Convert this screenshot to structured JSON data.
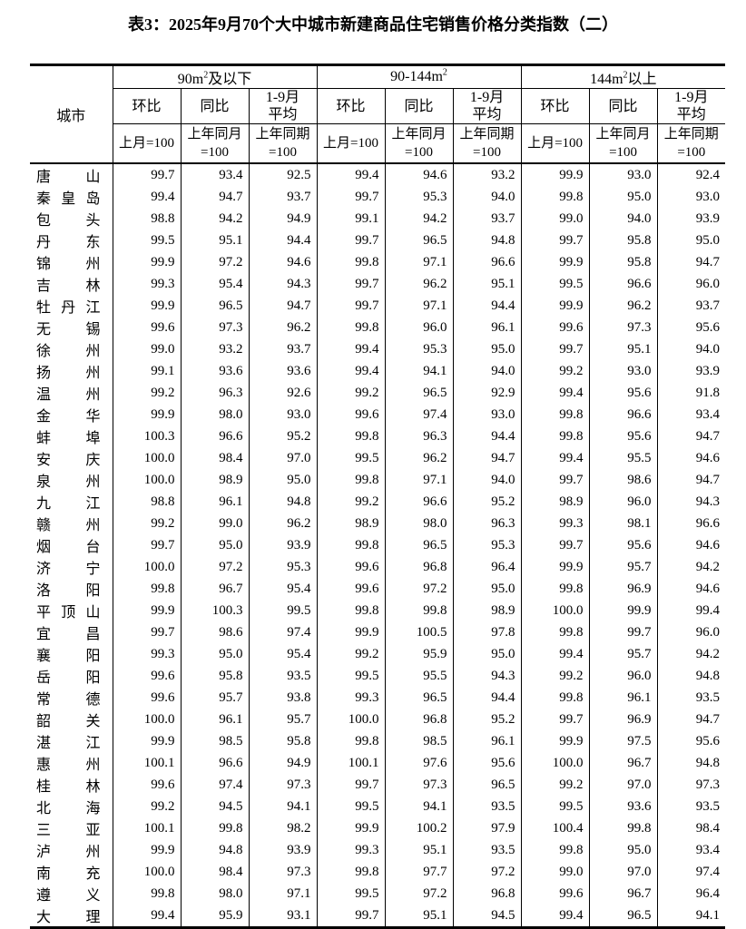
{
  "title": "表3：2025年9月70个大中城市新建商品住宅销售价格分类指数（二）",
  "table": {
    "city_header": "城市",
    "groups": [
      {
        "base": "90m",
        "sup": "2",
        "suffix": "及以下"
      },
      {
        "base": "90-144m",
        "sup": "2",
        "suffix": ""
      },
      {
        "base": "144m",
        "sup": "2",
        "suffix": "以上"
      }
    ],
    "sub_headers": [
      {
        "label_lines": [
          "环比"
        ],
        "basis_lines": [
          "上月=100"
        ]
      },
      {
        "label_lines": [
          "同比"
        ],
        "basis_lines": [
          "上年同月",
          "=100"
        ]
      },
      {
        "label_lines": [
          "1-9月",
          "平均"
        ],
        "basis_lines": [
          "上年同期",
          "=100"
        ]
      }
    ],
    "rows": [
      {
        "city": "唐山",
        "values": [
          "99.7",
          "93.4",
          "92.5",
          "99.4",
          "94.6",
          "93.2",
          "99.9",
          "93.0",
          "92.4"
        ]
      },
      {
        "city": "秦皇岛",
        "values": [
          "99.4",
          "94.7",
          "93.7",
          "99.7",
          "95.3",
          "94.0",
          "99.8",
          "95.0",
          "93.0"
        ]
      },
      {
        "city": "包头",
        "values": [
          "98.8",
          "94.2",
          "94.9",
          "99.1",
          "94.2",
          "93.7",
          "99.0",
          "94.0",
          "93.9"
        ]
      },
      {
        "city": "丹东",
        "values": [
          "99.5",
          "95.1",
          "94.4",
          "99.7",
          "96.5",
          "94.8",
          "99.7",
          "95.8",
          "95.0"
        ]
      },
      {
        "city": "锦州",
        "values": [
          "99.9",
          "97.2",
          "94.6",
          "99.8",
          "97.1",
          "96.6",
          "99.9",
          "95.8",
          "94.7"
        ]
      },
      {
        "city": "吉林",
        "values": [
          "99.3",
          "95.4",
          "94.3",
          "99.7",
          "96.2",
          "95.1",
          "99.5",
          "96.6",
          "96.0"
        ]
      },
      {
        "city": "牡丹江",
        "values": [
          "99.9",
          "96.5",
          "94.7",
          "99.7",
          "97.1",
          "94.4",
          "99.9",
          "96.2",
          "93.7"
        ]
      },
      {
        "city": "无锡",
        "values": [
          "99.6",
          "97.3",
          "96.2",
          "99.8",
          "96.0",
          "96.1",
          "99.6",
          "97.3",
          "95.6"
        ]
      },
      {
        "city": "徐州",
        "values": [
          "99.0",
          "93.2",
          "93.7",
          "99.4",
          "95.3",
          "95.0",
          "99.7",
          "95.1",
          "94.0"
        ]
      },
      {
        "city": "扬州",
        "values": [
          "99.1",
          "93.6",
          "93.6",
          "99.4",
          "94.1",
          "94.0",
          "99.2",
          "93.0",
          "93.9"
        ]
      },
      {
        "city": "温州",
        "values": [
          "99.2",
          "96.3",
          "92.6",
          "99.2",
          "96.5",
          "92.9",
          "99.4",
          "95.6",
          "91.8"
        ]
      },
      {
        "city": "金华",
        "values": [
          "99.9",
          "98.0",
          "93.0",
          "99.6",
          "97.4",
          "93.0",
          "99.8",
          "96.6",
          "93.4"
        ]
      },
      {
        "city": "蚌埠",
        "values": [
          "100.3",
          "96.6",
          "95.2",
          "99.8",
          "96.3",
          "94.4",
          "99.8",
          "95.6",
          "94.7"
        ]
      },
      {
        "city": "安庆",
        "values": [
          "100.0",
          "98.4",
          "97.0",
          "99.5",
          "96.2",
          "94.7",
          "99.4",
          "95.5",
          "94.6"
        ]
      },
      {
        "city": "泉州",
        "values": [
          "100.0",
          "98.9",
          "95.0",
          "99.8",
          "97.1",
          "94.0",
          "99.7",
          "98.6",
          "94.7"
        ]
      },
      {
        "city": "九江",
        "values": [
          "98.8",
          "96.1",
          "94.8",
          "99.2",
          "96.6",
          "95.2",
          "98.9",
          "96.0",
          "94.3"
        ]
      },
      {
        "city": "赣州",
        "values": [
          "99.2",
          "99.0",
          "96.2",
          "98.9",
          "98.0",
          "96.3",
          "99.3",
          "98.1",
          "96.6"
        ]
      },
      {
        "city": "烟台",
        "values": [
          "99.7",
          "95.0",
          "93.9",
          "99.8",
          "96.5",
          "95.3",
          "99.7",
          "95.6",
          "94.6"
        ]
      },
      {
        "city": "济宁",
        "values": [
          "100.0",
          "97.2",
          "95.3",
          "99.6",
          "96.8",
          "96.4",
          "99.9",
          "95.7",
          "94.2"
        ]
      },
      {
        "city": "洛阳",
        "values": [
          "99.8",
          "96.7",
          "95.4",
          "99.6",
          "97.2",
          "95.0",
          "99.8",
          "96.9",
          "94.6"
        ]
      },
      {
        "city": "平顶山",
        "values": [
          "99.9",
          "100.3",
          "99.5",
          "99.8",
          "99.8",
          "98.9",
          "100.0",
          "99.9",
          "99.4"
        ]
      },
      {
        "city": "宜昌",
        "values": [
          "99.7",
          "98.6",
          "97.4",
          "99.9",
          "100.5",
          "97.8",
          "99.8",
          "99.7",
          "96.0"
        ]
      },
      {
        "city": "襄阳",
        "values": [
          "99.3",
          "95.0",
          "95.4",
          "99.2",
          "95.9",
          "95.0",
          "99.4",
          "95.7",
          "94.2"
        ]
      },
      {
        "city": "岳阳",
        "values": [
          "99.6",
          "95.8",
          "93.5",
          "99.5",
          "95.5",
          "94.3",
          "99.2",
          "96.0",
          "94.8"
        ]
      },
      {
        "city": "常德",
        "values": [
          "99.6",
          "95.7",
          "93.8",
          "99.3",
          "96.5",
          "94.4",
          "99.8",
          "96.1",
          "93.5"
        ]
      },
      {
        "city": "韶关",
        "values": [
          "100.0",
          "96.1",
          "95.7",
          "100.0",
          "96.8",
          "95.2",
          "99.7",
          "96.9",
          "94.7"
        ]
      },
      {
        "city": "湛江",
        "values": [
          "99.9",
          "98.5",
          "95.8",
          "99.8",
          "98.5",
          "96.1",
          "99.9",
          "97.5",
          "95.6"
        ]
      },
      {
        "city": "惠州",
        "values": [
          "100.1",
          "96.6",
          "94.9",
          "100.1",
          "97.6",
          "95.6",
          "100.0",
          "96.7",
          "94.8"
        ]
      },
      {
        "city": "桂林",
        "values": [
          "99.6",
          "97.4",
          "97.3",
          "99.7",
          "97.3",
          "96.5",
          "99.2",
          "97.0",
          "97.3"
        ]
      },
      {
        "city": "北海",
        "values": [
          "99.2",
          "94.5",
          "94.1",
          "99.5",
          "94.1",
          "93.5",
          "99.5",
          "93.6",
          "93.5"
        ]
      },
      {
        "city": "三亚",
        "values": [
          "100.1",
          "99.8",
          "98.2",
          "99.9",
          "100.2",
          "97.9",
          "100.4",
          "99.8",
          "98.4"
        ]
      },
      {
        "city": "泸州",
        "values": [
          "99.9",
          "94.8",
          "93.9",
          "99.3",
          "95.1",
          "93.5",
          "99.8",
          "95.0",
          "93.4"
        ]
      },
      {
        "city": "南充",
        "values": [
          "100.0",
          "98.4",
          "97.3",
          "99.8",
          "97.7",
          "97.2",
          "99.0",
          "97.0",
          "97.4"
        ]
      },
      {
        "city": "遵义",
        "values": [
          "99.8",
          "98.0",
          "97.1",
          "99.5",
          "97.2",
          "96.8",
          "99.6",
          "96.7",
          "96.4"
        ]
      },
      {
        "city": "大理",
        "values": [
          "99.4",
          "95.9",
          "93.1",
          "99.7",
          "95.1",
          "94.5",
          "99.4",
          "96.5",
          "94.1"
        ]
      }
    ]
  }
}
